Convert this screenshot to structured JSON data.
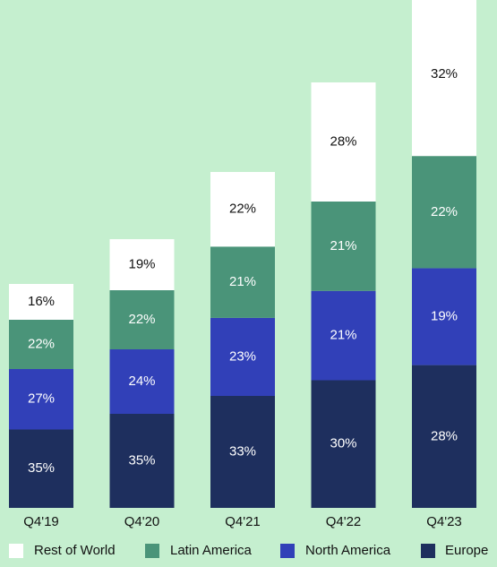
{
  "chart_data": {
    "type": "bar",
    "stacked": true,
    "categories": [
      "Q4'19",
      "Q4'20",
      "Q4'21",
      "Q4'22",
      "Q4'23"
    ],
    "series": [
      {
        "name": "Europe",
        "color": "#1e2f5e",
        "label_color": "#ffffff",
        "values": [
          35,
          35,
          33,
          30,
          28
        ]
      },
      {
        "name": "North America",
        "color": "#3140b8",
        "label_color": "#ffffff",
        "values": [
          27,
          24,
          23,
          21,
          19
        ]
      },
      {
        "name": "Latin America",
        "color": "#4a9479",
        "label_color": "#ffffff",
        "values": [
          22,
          22,
          21,
          21,
          22
        ]
      },
      {
        "name": "Rest of World",
        "color": "#ffffff",
        "label_color": "#111111",
        "values": [
          16,
          19,
          22,
          28,
          32
        ]
      }
    ],
    "total_bar_heights_relative": [
      1.0,
      1.2,
      1.5,
      1.9,
      2.3
    ],
    "data_labels": [
      [
        "35%",
        "35%",
        "33%",
        "30%",
        "28%"
      ],
      [
        "27%",
        "24%",
        "23%",
        "21%",
        "19%"
      ],
      [
        "22%",
        "22%",
        "21%",
        "21%",
        "22%"
      ],
      [
        "16%",
        "19%",
        "22%",
        "28%",
        "32%"
      ]
    ],
    "legend": {
      "placement": "bottom",
      "entries": [
        "Rest of World",
        "Latin America",
        "North America",
        "Europe"
      ]
    },
    "title": "",
    "xlabel": "",
    "ylabel": ""
  }
}
